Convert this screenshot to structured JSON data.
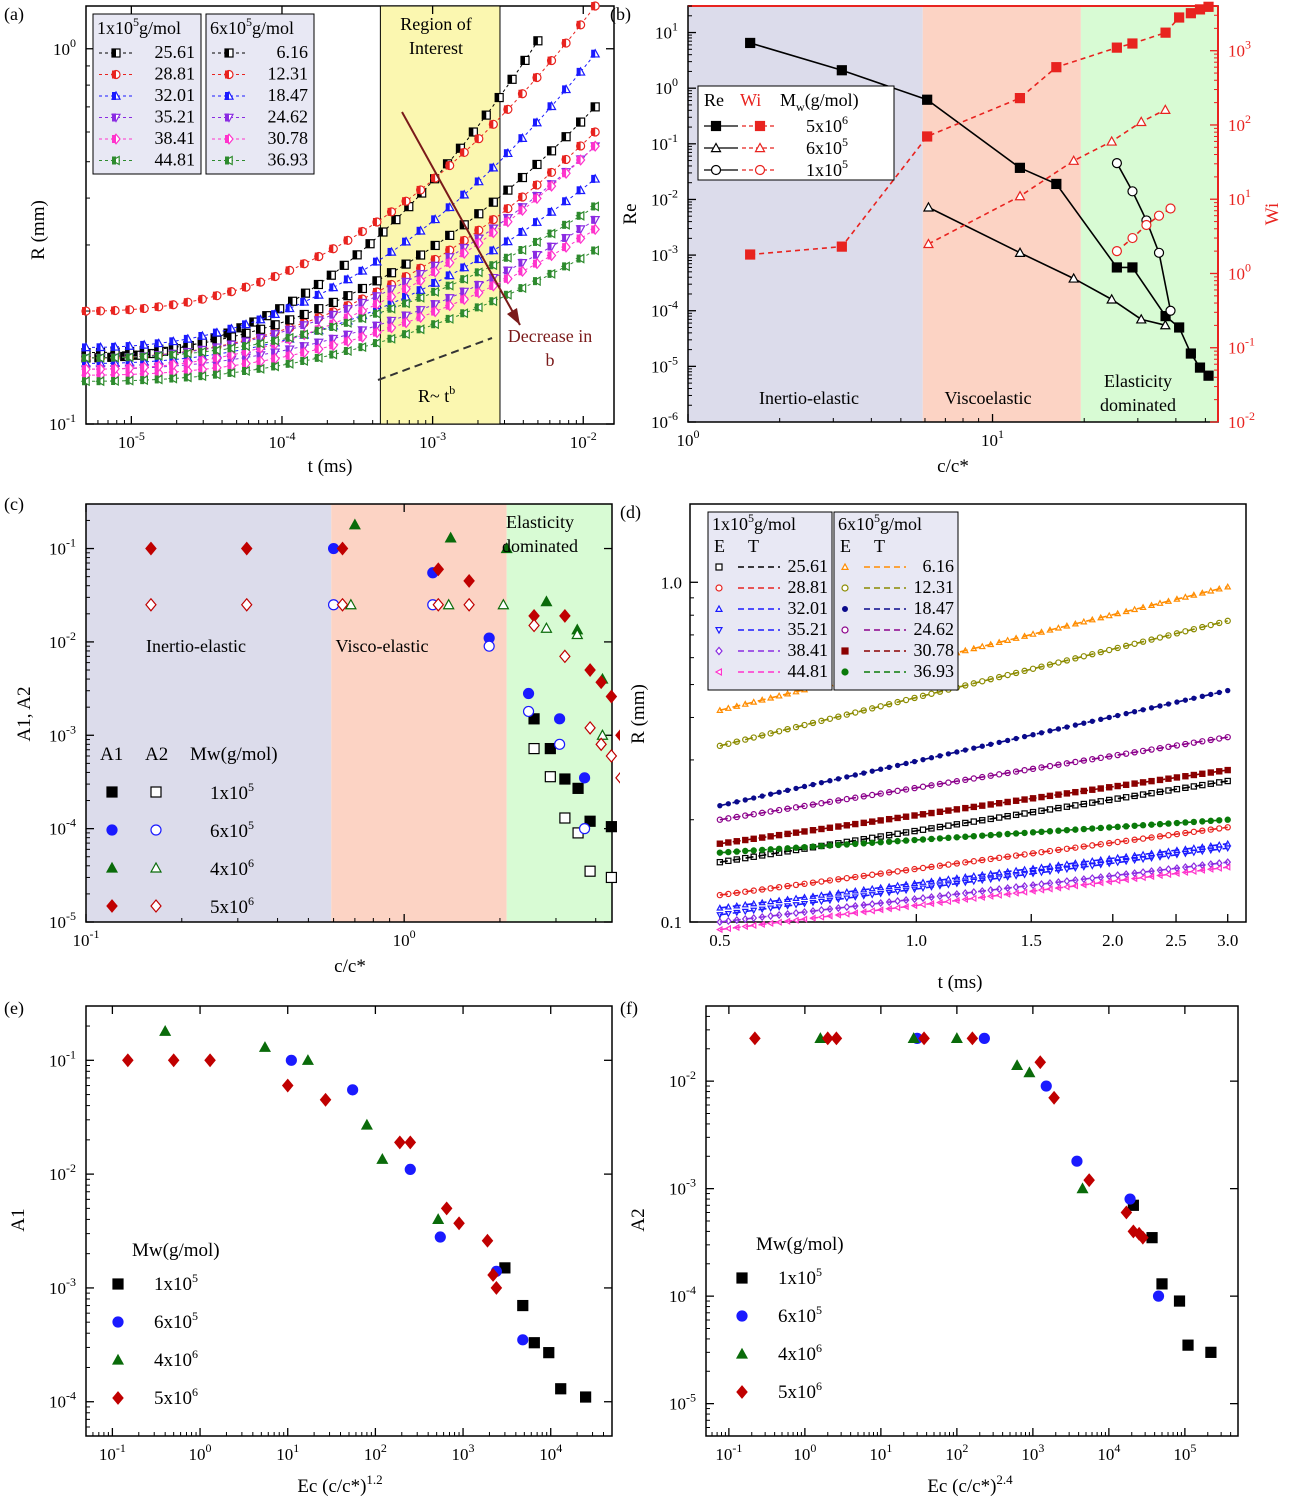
{
  "panels": {
    "a": {
      "letter": "(a)",
      "xlabel": "t (ms)",
      "ylabel": "R (mm)",
      "x_ticks": [
        "10-5",
        "10-4",
        "10-3",
        "10-2"
      ],
      "y_ticks": [
        "10-1",
        "100"
      ],
      "legend_head_1": "1x10",
      "legend_head_1_sup": "5",
      "legend_head_1_unit": "g/mol",
      "legend_head_2": "6x10",
      "legend_head_2_sup": "5",
      "legend_head_2_unit": "g/mol",
      "legend_values_1": [
        "25.61",
        "28.81",
        "32.01",
        "35.21",
        "38.41",
        "44.81"
      ],
      "legend_values_2": [
        "6.16",
        "12.31",
        "18.47",
        "24.62",
        "30.78",
        "36.93"
      ],
      "region_label_1": "Region of",
      "region_label_2": "Interest",
      "decrease_label_1": "Decrease in",
      "decrease_label_2": "b",
      "power_law_label": "R~ t",
      "power_law_sup": "b"
    },
    "b": {
      "letter": "(b)",
      "xlabel": "c/c*",
      "ylabel": "Re",
      "ylabel_right": "Wi",
      "legend_re": "Re",
      "legend_wi": "Wi",
      "legend_mw": "M",
      "legend_mw_sub": "w",
      "legend_mw_unit": "(g/mol)",
      "legend_rows": [
        "5x10",
        "6x10",
        "1x10"
      ],
      "legend_sups": [
        "6",
        "5",
        "5"
      ],
      "region_1": "Inertio-elastic",
      "region_2": "Viscoelastic",
      "region_3a": "Elasticity",
      "region_3b": "dominated"
    },
    "c": {
      "letter": "(c)",
      "xlabel": "c/c*",
      "ylabel": "A1, A2",
      "region_1": "Inertio-elastic",
      "region_2": "Visco-elastic",
      "region_3a": "Elasticity",
      "region_3b": "dominated",
      "legend_a1": "A1",
      "legend_a2": "A2",
      "legend_mw": "Mw(g/mol)",
      "legend_rows": [
        "1x10",
        "6x10",
        "4x10",
        "5x10"
      ],
      "legend_sups": [
        "5",
        "5",
        "6",
        "6"
      ]
    },
    "d": {
      "letter": "(d)",
      "xlabel": "t (ms)",
      "ylabel": "R (mm)",
      "x_ticks": [
        "0.5",
        "1.0",
        "1.5",
        "2.0",
        "2.5",
        "3.0"
      ],
      "y_ticks": [
        "0.1",
        "1.0"
      ],
      "legend_head_1": "1x10",
      "legend_head_2": "6x10",
      "legend_sup": "5",
      "legend_unit": "g/mol",
      "legend_e": "E",
      "legend_t": "T",
      "legend_values_1": [
        "25.61",
        "28.81",
        "32.01",
        "35.21",
        "38.41",
        "44.81"
      ],
      "legend_values_2": [
        "6.16",
        "12.31",
        "18.47",
        "24.62",
        "30.78",
        "36.93"
      ]
    },
    "e": {
      "letter": "(e)",
      "xlabel": "Ec (c/c*)",
      "xlabel_sup": "1.2",
      "ylabel": "A1",
      "legend_mw": "Mw(g/mol)",
      "legend_rows": [
        "1x10",
        "6x10",
        "4x10",
        "5x10"
      ],
      "legend_sups": [
        "5",
        "5",
        "6",
        "6"
      ]
    },
    "f": {
      "letter": "(f)",
      "xlabel": "Ec (c/c*)",
      "xlabel_sup": "2.4",
      "ylabel": "A2",
      "legend_mw": "Mw(g/mol)",
      "legend_rows": [
        "1x10",
        "6x10",
        "4x10",
        "5x10"
      ],
      "legend_sups": [
        "5",
        "5",
        "6",
        "6"
      ]
    }
  },
  "colors": {
    "black": "#000000",
    "red": "#e8231f",
    "blue": "#1a1aff",
    "purple": "#8a2be2",
    "magenta": "#ff33cc",
    "green": "#2e8b2e",
    "darkgreen": "#0a6b0a",
    "darkred": "#c00000",
    "region_inertio": "#dcdceb",
    "region_visco": "#fcd3c4",
    "region_elastic": "#d8fbd4",
    "region_interest": "#fbf7b0",
    "arrow": "#7a1a1a"
  },
  "chart_data": [
    {
      "panel": "a",
      "type": "scatter",
      "xscale": "log",
      "yscale": "log",
      "xlim": [
        5e-06,
        0.016
      ],
      "ylim": [
        0.1,
        1.3
      ],
      "region": [
        0.00045,
        0.0028
      ],
      "series": [
        {
          "name": "25.61",
          "group": "1x10^5",
          "color": "#000000",
          "r0": 0.15,
          "rend": 1.05,
          "tstart": 5e-06,
          "tend": 0.005
        },
        {
          "name": "28.81",
          "group": "1x10^5",
          "color": "#e8231f",
          "r0": 0.15,
          "rend": 0.6,
          "tstart": 5e-06,
          "tend": 0.012
        },
        {
          "name": "32.01",
          "group": "1x10^5",
          "color": "#1a1aff",
          "r0": 0.145,
          "rend": 0.45,
          "tstart": 5e-06,
          "tend": 0.012
        },
        {
          "name": "35.21",
          "group": "1x10^5",
          "color": "#8a2be2",
          "r0": 0.14,
          "rend": 0.35,
          "tstart": 5e-06,
          "tend": 0.012
        },
        {
          "name": "38.41",
          "group": "1x10^5",
          "color": "#ff33cc",
          "r0": 0.135,
          "rend": 0.33,
          "tstart": 5e-06,
          "tend": 0.012
        },
        {
          "name": "44.81",
          "group": "1x10^5",
          "color": "#2e8b2e",
          "r0": 0.13,
          "rend": 0.29,
          "tstart": 5e-06,
          "tend": 0.012
        },
        {
          "name": "6.16",
          "group": "6x10^5",
          "color": "#000000",
          "r0": 0.155,
          "rend": 0.7,
          "tstart": 5e-06,
          "tend": 0.012
        },
        {
          "name": "12.31",
          "group": "6x10^5",
          "color": "#e8231f",
          "r0": 0.2,
          "rend": 1.3,
          "tstart": 5e-06,
          "tend": 0.012
        },
        {
          "name": "18.47",
          "group": "6x10^5",
          "color": "#1a1aff",
          "r0": 0.16,
          "rend": 0.97,
          "tstart": 5e-06,
          "tend": 0.012
        },
        {
          "name": "24.62",
          "group": "6x10^5",
          "color": "#8a2be2",
          "r0": 0.15,
          "rend": 0.55,
          "tstart": 5e-06,
          "tend": 0.012
        },
        {
          "name": "30.78",
          "group": "6x10^5",
          "color": "#ff33cc",
          "r0": 0.14,
          "rend": 0.55,
          "tstart": 5e-06,
          "tend": 0.012
        },
        {
          "name": "36.93",
          "group": "6x10^5",
          "color": "#2e8b2e",
          "r0": 0.15,
          "rend": 0.38,
          "tstart": 5e-06,
          "tend": 0.012
        }
      ]
    },
    {
      "panel": "b",
      "type": "line",
      "xscale": "log",
      "yscale": "log",
      "xlim": [
        1,
        55
      ],
      "ylim_left": [
        1e-06,
        30
      ],
      "ylim_right": [
        0.01,
        4000
      ],
      "regions": [
        [
          1,
          5.9
        ],
        [
          5.9,
          19.5
        ],
        [
          19.5,
          55
        ]
      ],
      "series": [
        {
          "name": "Re 5x10^6",
          "axis": "left",
          "color": "#000000",
          "marker": "square-filled",
          "x": [
            1.6,
            3.2,
            6.1,
            12.3,
            16.2,
            25.6,
            28.8,
            37,
            41,
            44.8,
            48,
            51.2
          ],
          "y": [
            6.5,
            2.1,
            0.62,
            0.037,
            0.019,
            0.0006,
            0.0006,
            8e-05,
            5e-05,
            1.7e-05,
            9.5e-06,
            6.8e-06
          ]
        },
        {
          "name": "Re 6x10^5",
          "axis": "left",
          "color": "#000000",
          "marker": "triangle-open",
          "x": [
            6.16,
            12.31,
            18.47,
            24.62,
            30.78,
            36.93
          ],
          "y": [
            0.0072,
            0.0011,
            0.00038,
            0.00016,
            7e-05,
            5.5e-05
          ]
        },
        {
          "name": "Re 1x10^5",
          "axis": "left",
          "color": "#000000",
          "marker": "circle-open",
          "x": [
            25.61,
            28.81,
            32.01,
            35.21,
            38.41
          ],
          "y": [
            0.045,
            0.014,
            0.0042,
            0.0011,
            0.0001
          ]
        },
        {
          "name": "Wi 5x10^6",
          "axis": "right",
          "color": "#e8231f",
          "marker": "square-filled",
          "x": [
            1.6,
            3.2,
            6.1,
            12.3,
            16.2,
            25.6,
            28.8,
            37,
            41,
            44.8,
            48,
            51.2
          ],
          "y": [
            1.8,
            2.3,
            70,
            230,
            600,
            1100,
            1250,
            1750,
            2800,
            3200,
            3600,
            3900
          ]
        },
        {
          "name": "Wi 6x10^5",
          "axis": "right",
          "color": "#e8231f",
          "marker": "triangle-open",
          "x": [
            6.16,
            12.31,
            18.47,
            24.62,
            30.78,
            36.93
          ],
          "y": [
            2.5,
            11,
            33,
            60,
            110,
            160
          ]
        },
        {
          "name": "Wi 1x10^5",
          "axis": "right",
          "color": "#e8231f",
          "marker": "circle-open",
          "x": [
            25.61,
            28.81,
            32.01,
            35.21,
            38.41
          ],
          "y": [
            2,
            3,
            4.5,
            6,
            7.5
          ]
        }
      ]
    },
    {
      "panel": "c",
      "type": "scatter",
      "xscale": "log",
      "yscale": "log",
      "xlim": [
        0.1,
        4.5
      ],
      "ylim": [
        1e-05,
        0.3
      ],
      "regions": [
        [
          0.1,
          0.59
        ],
        [
          0.59,
          2.1
        ],
        [
          2.1,
          4.5
        ]
      ],
      "series": [
        {
          "name": "A1 1x10^5",
          "color": "#000000",
          "marker": "square-filled",
          "x": [
            2.56,
            2.88,
            3.2,
            3.52,
            3.84,
            4.48
          ],
          "y": [
            0.0015,
            0.00072,
            0.00034,
            0.00027,
            0.00012,
            0.000105
          ]
        },
        {
          "name": "A2 1x10^5",
          "color": "#000000",
          "marker": "square-open",
          "x": [
            2.56,
            2.88,
            3.2,
            3.52,
            3.84,
            4.48
          ],
          "y": [
            0.00072,
            0.00036,
            0.00013,
            9e-05,
            3.5e-05,
            3e-05
          ]
        },
        {
          "name": "A1 6x10^5",
          "color": "#1a1aff",
          "marker": "circle-filled",
          "x": [
            0.6,
            1.23,
            1.85,
            2.46,
            3.08,
            3.69
          ],
          "y": [
            0.1,
            0.055,
            0.011,
            0.0028,
            0.0015,
            0.00035
          ]
        },
        {
          "name": "A2 6x10^5",
          "color": "#1a1aff",
          "marker": "circle-open",
          "x": [
            0.6,
            1.23,
            1.85,
            2.46,
            3.08,
            3.69
          ],
          "y": [
            0.025,
            0.025,
            0.009,
            0.0018,
            0.0008,
            0.0001
          ]
        },
        {
          "name": "A1 4x10^6",
          "color": "#0a6b0a",
          "marker": "triangle-filled",
          "x": [
            0.7,
            1.4,
            2.1,
            2.8,
            3.5,
            4.2
          ],
          "y": [
            0.18,
            0.13,
            0.1,
            0.027,
            0.0135,
            0.004
          ]
        },
        {
          "name": "A2 4x10^6",
          "color": "#0a6b0a",
          "marker": "triangle-open",
          "x": [
            0.68,
            1.38,
            2.05,
            2.8,
            3.5,
            4.2
          ],
          "y": [
            0.025,
            0.025,
            0.025,
            0.014,
            0.012,
            0.001
          ]
        },
        {
          "name": "A1 5x10^6",
          "color": "#c00000",
          "marker": "diamond-filled",
          "x": [
            0.16,
            0.32,
            0.64,
            1.28,
            1.6,
            2.56,
            3.2,
            3.84,
            4.16,
            4.48,
            4.8
          ],
          "y": [
            0.1,
            0.1,
            0.1,
            0.06,
            0.045,
            0.019,
            0.019,
            0.005,
            0.0037,
            0.0026,
            0.001
          ]
        },
        {
          "name": "A2 5x10^6",
          "color": "#c00000",
          "marker": "diamond-open",
          "x": [
            0.16,
            0.32,
            0.64,
            1.28,
            1.6,
            2.56,
            3.2,
            3.84,
            4.16,
            4.48,
            4.8
          ],
          "y": [
            0.025,
            0.025,
            0.025,
            0.025,
            0.025,
            0.015,
            0.007,
            0.0012,
            0.0008,
            0.0006,
            0.00035
          ]
        }
      ]
    },
    {
      "panel": "d",
      "type": "scatter",
      "xscale": "log",
      "yscale": "log",
      "xlim": [
        0.45,
        3.2
      ],
      "ylim": [
        0.1,
        1.7
      ],
      "series": [
        {
          "name": "25.61",
          "color": "#000000",
          "r05": 0.15,
          "r3": 0.26
        },
        {
          "name": "28.81",
          "color": "#e8231f",
          "r05": 0.12,
          "r3": 0.19
        },
        {
          "name": "32.01",
          "color": "#1a1aff",
          "r05": 0.11,
          "r3": 0.17
        },
        {
          "name": "35.21",
          "color": "#1a1aff",
          "r05": 0.105,
          "r3": 0.165
        },
        {
          "name": "38.41",
          "color": "#8a2be2",
          "r05": 0.1,
          "r3": 0.15
        },
        {
          "name": "44.81",
          "color": "#ff33cc",
          "r05": 0.095,
          "r3": 0.145
        },
        {
          "name": "6.16",
          "color": "#ff8c00",
          "r05": 0.42,
          "r3": 0.97
        },
        {
          "name": "12.31",
          "color": "#8b8b00",
          "r05": 0.33,
          "r3": 0.77
        },
        {
          "name": "18.47",
          "color": "#0a0a8b",
          "r05": 0.22,
          "r3": 0.48
        },
        {
          "name": "24.62",
          "color": "#8b008b",
          "r05": 0.2,
          "r3": 0.35
        },
        {
          "name": "30.78",
          "color": "#8b0000",
          "r05": 0.17,
          "r3": 0.28
        },
        {
          "name": "36.93",
          "color": "#0a7a0a",
          "r05": 0.16,
          "r3": 0.2
        }
      ]
    },
    {
      "panel": "e",
      "type": "scatter",
      "xscale": "log",
      "yscale": "log",
      "xlim": [
        0.05,
        50000
      ],
      "ylim": [
        5e-05,
        0.3
      ],
      "series": [
        {
          "name": "1x10^5",
          "color": "#000000",
          "marker": "square-filled",
          "x": [
            3000,
            4800,
            6500,
            9500,
            13000,
            25000
          ],
          "y": [
            0.0015,
            0.0007,
            0.00033,
            0.00027,
            0.00013,
            0.00011
          ]
        },
        {
          "name": "6x10^5",
          "color": "#1a1aff",
          "marker": "circle-filled",
          "x": [
            11,
            55,
            250,
            550,
            2400,
            4800
          ],
          "y": [
            0.1,
            0.055,
            0.011,
            0.0028,
            0.0014,
            0.00035
          ]
        },
        {
          "name": "4x10^6",
          "color": "#0a6b0a",
          "marker": "triangle-filled",
          "x": [
            0.4,
            5.5,
            17,
            80,
            120,
            520
          ],
          "y": [
            0.18,
            0.13,
            0.1,
            0.027,
            0.0135,
            0.004
          ]
        },
        {
          "name": "5x10^6",
          "color": "#c00000",
          "marker": "diamond-filled",
          "x": [
            0.15,
            0.5,
            1.3,
            10,
            27,
            190,
            250,
            650,
            900,
            1900,
            2200,
            2400
          ],
          "y": [
            0.1,
            0.1,
            0.1,
            0.06,
            0.045,
            0.019,
            0.019,
            0.005,
            0.0037,
            0.0026,
            0.0013,
            0.001
          ]
        }
      ]
    },
    {
      "panel": "f",
      "type": "scatter",
      "xscale": "log",
      "yscale": "log",
      "xlim": [
        0.05,
        500000
      ],
      "ylim": [
        5e-06,
        0.05
      ],
      "series": [
        {
          "name": "1x10^5",
          "color": "#000000",
          "marker": "square-filled",
          "x": [
            21000,
            37000,
            50000,
            85000,
            110000,
            220000
          ],
          "y": [
            0.0007,
            0.00035,
            0.00013,
            9e-05,
            3.5e-05,
            3e-05
          ]
        },
        {
          "name": "6x10^5",
          "color": "#1a1aff",
          "marker": "circle-filled",
          "x": [
            30,
            230,
            1500,
            3800,
            19000,
            45000
          ],
          "y": [
            0.025,
            0.025,
            0.009,
            0.0018,
            0.0008,
            0.0001
          ]
        },
        {
          "name": "4x10^6",
          "color": "#0a6b0a",
          "marker": "triangle-filled",
          "x": [
            1.6,
            27,
            100,
            620,
            900,
            4500
          ],
          "y": [
            0.025,
            0.025,
            0.025,
            0.014,
            0.012,
            0.001
          ]
        },
        {
          "name": "5x10^6",
          "color": "#c00000",
          "marker": "diamond-filled",
          "x": [
            0.22,
            2,
            2.6,
            37,
            160,
            1250,
            1900,
            5500,
            17000,
            21000,
            25000,
            28000
          ],
          "y": [
            0.025,
            0.025,
            0.025,
            0.025,
            0.025,
            0.015,
            0.007,
            0.0012,
            0.0006,
            0.0004,
            0.00038,
            0.00035
          ]
        }
      ]
    }
  ]
}
